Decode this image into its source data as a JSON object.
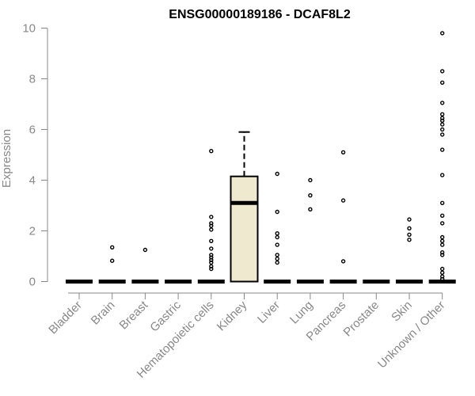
{
  "chart_data": {
    "type": "box",
    "title": "ENSG00000189186 - DCAF8L2",
    "xlabel": "",
    "ylabel": "Expression",
    "ylim": [
      0,
      10
    ],
    "yticks": [
      0,
      2,
      4,
      6,
      8,
      10
    ],
    "grid": false,
    "colors": {
      "box_fill": "#efe9cf",
      "stroke": "#000000",
      "axis": "#888888"
    },
    "categories": [
      "Bladder",
      "Brain",
      "Breast",
      "Gastric",
      "Hematopoietic cells",
      "Kidney",
      "Liver",
      "Lung",
      "Pancreas",
      "Prostate",
      "Skin",
      "Unknown / Other"
    ],
    "boxes": [
      {
        "category": "Bladder",
        "q1": 0,
        "median": 0,
        "q3": 0,
        "whisker_low": 0,
        "whisker_high": 0,
        "outliers": []
      },
      {
        "category": "Brain",
        "q1": 0,
        "median": 0,
        "q3": 0,
        "whisker_low": 0,
        "whisker_high": 0,
        "outliers": [
          1.35,
          0.82
        ]
      },
      {
        "category": "Breast",
        "q1": 0,
        "median": 0,
        "q3": 0,
        "whisker_low": 0,
        "whisker_high": 0,
        "outliers": [
          1.25
        ]
      },
      {
        "category": "Gastric",
        "q1": 0,
        "median": 0,
        "q3": 0,
        "whisker_low": 0,
        "whisker_high": 0,
        "outliers": []
      },
      {
        "category": "Hematopoietic cells",
        "q1": 0,
        "median": 0,
        "q3": 0,
        "whisker_low": 0,
        "whisker_high": 0,
        "outliers": [
          5.15,
          2.55,
          2.3,
          2.2,
          2.05,
          1.6,
          1.3,
          1.05,
          0.95,
          0.85,
          0.75,
          0.6,
          0.5
        ]
      },
      {
        "category": "Kidney",
        "q1": 0,
        "median": 3.1,
        "q3": 4.15,
        "whisker_low": 0,
        "whisker_high": 5.9,
        "outliers": []
      },
      {
        "category": "Liver",
        "q1": 0,
        "median": 0,
        "q3": 0,
        "whisker_low": 0,
        "whisker_high": 0,
        "outliers": [
          4.25,
          2.75,
          1.9,
          1.75,
          1.45,
          1.05,
          0.9,
          0.75
        ]
      },
      {
        "category": "Lung",
        "q1": 0,
        "median": 0,
        "q3": 0,
        "whisker_low": 0,
        "whisker_high": 0,
        "outliers": [
          4.0,
          3.4,
          2.85
        ]
      },
      {
        "category": "Pancreas",
        "q1": 0,
        "median": 0,
        "q3": 0,
        "whisker_low": 0,
        "whisker_high": 0,
        "outliers": [
          5.1,
          3.2,
          0.8
        ]
      },
      {
        "category": "Prostate",
        "q1": 0,
        "median": 0,
        "q3": 0,
        "whisker_low": 0,
        "whisker_high": 0,
        "outliers": []
      },
      {
        "category": "Skin",
        "q1": 0,
        "median": 0,
        "q3": 0,
        "whisker_low": 0,
        "whisker_high": 0,
        "outliers": [
          2.45,
          2.1,
          1.85,
          1.65
        ]
      },
      {
        "category": "Unknown / Other",
        "q1": 0,
        "median": 0,
        "q3": 0,
        "whisker_low": 0,
        "whisker_high": 0,
        "outliers": [
          9.8,
          8.3,
          7.85,
          7.05,
          6.6,
          6.45,
          6.35,
          6.2,
          6.0,
          5.8,
          5.2,
          4.2,
          3.1,
          2.6,
          2.3,
          1.75,
          1.6,
          1.45,
          1.15,
          1.05,
          0.5,
          0.35,
          0.2,
          0.1
        ]
      }
    ]
  }
}
